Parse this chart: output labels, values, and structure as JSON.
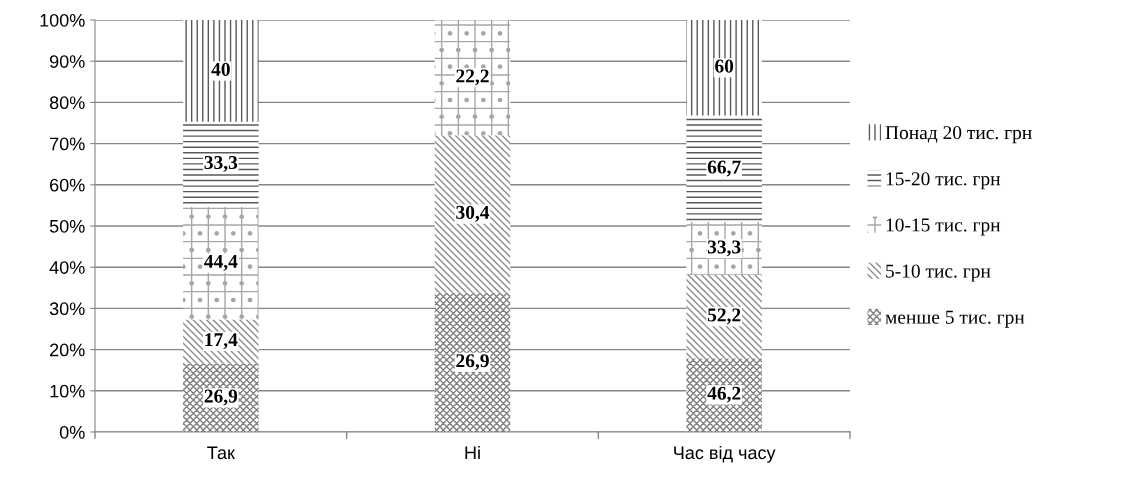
{
  "chart_data": {
    "type": "bar",
    "stacked": true,
    "categories": [
      "Так",
      "Ні",
      "Час від часу"
    ],
    "series": [
      {
        "name": "менше 5 тис. грн",
        "color": "#7f7f7f",
        "values": [
          16.6,
          33.8,
          17.9
        ]
      },
      {
        "name": "5-10 тис. грн",
        "color": "#8c8c8c",
        "values": [
          10.7,
          38.2,
          20.2
        ]
      },
      {
        "name": "10-15 тис. грн",
        "color": "#a6a6a6",
        "values": [
          27.4,
          27.9,
          12.9
        ]
      },
      {
        "name": "15-20 тис. грн",
        "color": "#595959",
        "values": [
          20.6,
          null,
          25.8
        ]
      },
      {
        "name": "Понад 20 тис. грн",
        "color": "#595959",
        "values": [
          24.7,
          null,
          23.2
        ]
      }
    ],
    "annotations": [
      {
        "text": "26,9",
        "x": "Так",
        "y": 8.3
      },
      {
        "text": "17,4",
        "x": "Так",
        "y": 22
      },
      {
        "text": "44,4",
        "x": "Так",
        "y": 41
      },
      {
        "text": "33,3",
        "x": "Так",
        "y": 65
      },
      {
        "text": "40",
        "x": "Так",
        "y": 87.6
      },
      {
        "text": "26,9",
        "x": "Ні",
        "y": 16.9
      },
      {
        "text": "30,4",
        "x": "Ні",
        "y": 52.9
      },
      {
        "text": "22,2",
        "x": "Ні",
        "y": 86
      },
      {
        "text": "46,2",
        "x": "Час від часу",
        "y": 9
      },
      {
        "text": "52,2",
        "x": "Час від часу",
        "y": 28
      },
      {
        "text": "33,3",
        "x": "Час від часу",
        "y": 44.5
      },
      {
        "text": "66,7",
        "x": "Час від часу",
        "y": 63.9
      },
      {
        "text": "60",
        "x": "Час від часу",
        "y": 88.4
      }
    ],
    "ylim": [
      0,
      100
    ],
    "yticks": [
      {
        "value": 0,
        "label": "0%"
      },
      {
        "value": 10,
        "label": "10%"
      },
      {
        "value": 20,
        "label": "20%"
      },
      {
        "value": 30,
        "label": "30%"
      },
      {
        "value": 40,
        "label": "40%"
      },
      {
        "value": 50,
        "label": "50%"
      },
      {
        "value": 60,
        "label": "60%"
      },
      {
        "value": 70,
        "label": "70%"
      },
      {
        "value": 80,
        "label": "80%"
      },
      {
        "value": 90,
        "label": "90%"
      },
      {
        "value": 100,
        "label": "100%"
      }
    ],
    "grid": "y",
    "legend": "right"
  }
}
